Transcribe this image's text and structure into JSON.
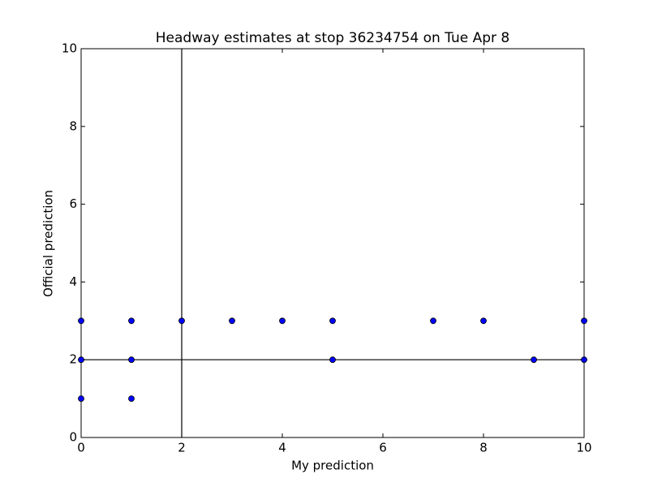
{
  "chart_data": {
    "type": "scatter",
    "title": "Headway estimates at stop 36234754 on Tue Apr 8",
    "x_label": "My prediction",
    "y_label": "Official prediction",
    "series": [
      {
        "color": "#0000ff",
        "x": [
          0,
          0,
          0,
          1,
          1,
          1,
          2,
          3,
          4,
          5,
          5,
          7,
          8,
          9,
          10,
          10
        ],
        "values": [
          3,
          2,
          1,
          3,
          2,
          1,
          3,
          3,
          3,
          3,
          2,
          3,
          3,
          2,
          3,
          2
        ]
      }
    ],
    "xlim": [
      0,
      10
    ],
    "ylim": [
      0,
      10
    ],
    "xticks": [
      0,
      2,
      4,
      6,
      8,
      10
    ],
    "yticks": [
      0,
      2,
      4,
      6,
      8,
      10
    ],
    "vlines": [
      2
    ],
    "hlines": [
      2
    ],
    "grid": false
  }
}
